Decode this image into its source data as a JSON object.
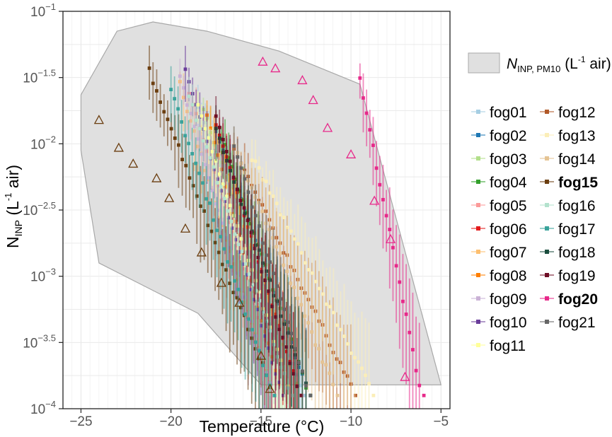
{
  "chart_data": {
    "type": "scatter",
    "title": "",
    "xlabel": "Temperature (°C)",
    "ylabel": {
      "main": "N",
      "sub": "INP",
      "unit_open": " (L",
      "unit_sup": "-1",
      "unit_close": " air)"
    },
    "xlim": [
      -26,
      -4.5
    ],
    "ylim_log10": [
      -4,
      -1
    ],
    "log_y": true,
    "grid": true,
    "x_ticks": [
      {
        "value": -25,
        "label": "−25"
      },
      {
        "value": -20,
        "label": "−20"
      },
      {
        "value": -15,
        "label": "−15"
      },
      {
        "value": -10,
        "label": "−10"
      },
      {
        "value": -5,
        "label": "−5"
      }
    ],
    "y_ticks": [
      {
        "value": -1,
        "base": "10",
        "exp": "−1"
      },
      {
        "value": -1.5,
        "base": "10",
        "exp": "−1.5"
      },
      {
        "value": -2,
        "base": "10",
        "exp": "−2"
      },
      {
        "value": -2.5,
        "base": "10",
        "exp": "−2.5"
      },
      {
        "value": -3,
        "base": "10",
        "exp": "−3"
      },
      {
        "value": -3.5,
        "base": "10",
        "exp": "−3.5"
      },
      {
        "value": -4,
        "base": "10",
        "exp": "−4"
      }
    ],
    "pm10_envelope": {
      "label": {
        "main": "N",
        "sub": "INP, PM10",
        "unit_open": " (L",
        "unit_sup": "-1",
        "unit_close": " air)"
      },
      "color": "#e0e0e0",
      "polygon": [
        [
          -25,
          -1.63
        ],
        [
          -23,
          -1.15
        ],
        [
          -21,
          -1.08
        ],
        [
          -18,
          -1.15
        ],
        [
          -14,
          -1.3
        ],
        [
          -9.5,
          -1.55
        ],
        [
          -5,
          -3.82
        ],
        [
          -15,
          -3.82
        ],
        [
          -18.5,
          -3.28
        ],
        [
          -24,
          -2.9
        ],
        [
          -25,
          -2.05
        ]
      ]
    },
    "triangles_fog15": [
      [
        -24,
        -1.82
      ],
      [
        -22.9,
        -2.03
      ],
      [
        -22.1,
        -2.15
      ],
      [
        -20.8,
        -2.26
      ],
      [
        -20.1,
        -2.41
      ],
      [
        -19.2,
        -2.64
      ],
      [
        -18.3,
        -2.82
      ],
      [
        -17.2,
        -3.05
      ],
      [
        -16.2,
        -3.2
      ],
      [
        -15,
        -3.6
      ],
      [
        -14.5,
        -3.85
      ]
    ],
    "triangles_fog20": [
      [
        -14.9,
        -1.38
      ],
      [
        -14.2,
        -1.43
      ],
      [
        -12.7,
        -1.52
      ],
      [
        -12.1,
        -1.67
      ],
      [
        -11.3,
        -1.88
      ],
      [
        -10,
        -2.08
      ],
      [
        -8.7,
        -2.43
      ],
      [
        -7.8,
        -2.72
      ],
      [
        -7,
        -3.76
      ]
    ],
    "series": [
      {
        "name": "fog01",
        "color": "#a6cee3",
        "t_max": -18.5,
        "t_min": -12.8,
        "y_max": -1.7,
        "bold": false
      },
      {
        "name": "fog02",
        "color": "#1f78b4",
        "t_max": -17.5,
        "t_min": -12.5,
        "y_max": -1.9,
        "bold": false
      },
      {
        "name": "fog03",
        "color": "#b2df8a",
        "t_max": -18.2,
        "t_min": -13,
        "y_max": -1.75,
        "bold": false
      },
      {
        "name": "fog04",
        "color": "#33a02c",
        "t_max": -17.2,
        "t_min": -12.5,
        "y_max": -1.95,
        "bold": false
      },
      {
        "name": "fog05",
        "color": "#fb9a99",
        "t_max": -19,
        "t_min": -14,
        "y_max": -1.6,
        "bold": false
      },
      {
        "name": "fog06",
        "color": "#e31a1c",
        "t_max": -17.5,
        "t_min": -13,
        "y_max": -1.85,
        "bold": false
      },
      {
        "name": "fog07",
        "color": "#fdbf6f",
        "t_max": -19.5,
        "t_min": -14.5,
        "y_max": -1.55,
        "bold": false
      },
      {
        "name": "fog08",
        "color": "#ff7f00",
        "t_max": -18,
        "t_min": -14,
        "y_max": -1.8,
        "bold": false
      },
      {
        "name": "fog09",
        "color": "#cab2d6",
        "t_max": -19.5,
        "t_min": -14.5,
        "y_max": -1.5,
        "bold": false
      },
      {
        "name": "fog10",
        "color": "#6a3d9a",
        "t_max": -19.2,
        "t_min": -14,
        "y_max": -1.45,
        "bold": false
      },
      {
        "name": "fog11",
        "color": "#ffff99",
        "t_max": -18.5,
        "t_min": -13.5,
        "y_max": -1.7,
        "bold": false
      },
      {
        "name": "fog12",
        "color": "#b15928",
        "t_max": -16.5,
        "t_min": -10,
        "y_max": -2.05,
        "bold": false
      },
      {
        "name": "fog13",
        "color": "#fbeeb8",
        "t_max": -15.5,
        "t_min": -9,
        "y_max": -2.1,
        "bold": false
      },
      {
        "name": "fog14",
        "color": "#e5c494",
        "t_max": -16.5,
        "t_min": -11,
        "y_max": -2.0,
        "bold": false
      },
      {
        "name": "fog15",
        "color": "#6b3e10",
        "t_max": -21.2,
        "t_min": -14.5,
        "y_max": -1.45,
        "bold": true
      },
      {
        "name": "fog16",
        "color": "#b3e2cd",
        "t_max": -19,
        "t_min": -13.5,
        "y_max": -1.65,
        "bold": false
      },
      {
        "name": "fog17",
        "color": "#3aa39b",
        "t_max": -20,
        "t_min": -14.5,
        "y_max": -1.6,
        "bold": false
      },
      {
        "name": "fog18",
        "color": "#1b4d3e",
        "t_max": -17.5,
        "t_min": -12.5,
        "y_max": -1.9,
        "bold": false
      },
      {
        "name": "fog19",
        "color": "#6e0d25",
        "t_max": -17.5,
        "t_min": -13,
        "y_max": -1.8,
        "bold": false
      },
      {
        "name": "fog20",
        "color": "#e7298a",
        "t_max": -9.5,
        "t_min": -6.2,
        "y_max": -1.52,
        "bold": true
      },
      {
        "name": "fog21",
        "color": "#666666",
        "t_max": -16.5,
        "t_min": -12.5,
        "y_max": -2.0,
        "bold": false
      }
    ]
  }
}
